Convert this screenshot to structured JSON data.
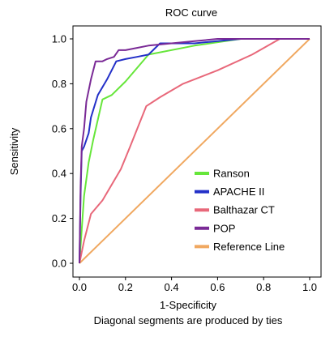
{
  "chart_data": {
    "type": "line",
    "title": "ROC curve",
    "xlabel": "1-Specificity",
    "ylabel": "Sensitivity",
    "note": "Diagonal segments are produced by ties",
    "xlim": [
      0,
      1
    ],
    "ylim": [
      0,
      1
    ],
    "x_ticks": [
      "0.0",
      "0.2",
      "0.4",
      "0.6",
      "0.8",
      "1.0"
    ],
    "y_ticks": [
      "0.0",
      "0.2",
      "0.4",
      "0.6",
      "0.8",
      "1.0"
    ],
    "legend_position": "bottom-right",
    "grid": false,
    "series": [
      {
        "name": "Ranson",
        "color": "#66e63a",
        "x": [
          0,
          0.01,
          0.02,
          0.04,
          0.06,
          0.1,
          0.14,
          0.2,
          0.3,
          0.5,
          0.7
        ],
        "y": [
          0,
          0.15,
          0.3,
          0.45,
          0.55,
          0.73,
          0.75,
          0.81,
          0.93,
          0.97,
          1.0
        ]
      },
      {
        "name": "APACHE II",
        "color": "#2330c8",
        "x": [
          0,
          0.005,
          0.01,
          0.02,
          0.04,
          0.05,
          0.08,
          0.12,
          0.16,
          0.2,
          0.25,
          0.3,
          0.35,
          0.5,
          0.7
        ],
        "y": [
          0,
          0.3,
          0.5,
          0.52,
          0.58,
          0.65,
          0.75,
          0.82,
          0.9,
          0.91,
          0.92,
          0.93,
          0.98,
          0.98,
          1.0
        ]
      },
      {
        "name": "Balthazar CT",
        "color": "#e8687a",
        "x": [
          0,
          0.02,
          0.05,
          0.1,
          0.18,
          0.22,
          0.29,
          0.35,
          0.45,
          0.6,
          0.75,
          0.87,
          1.0
        ],
        "y": [
          0,
          0.1,
          0.22,
          0.28,
          0.42,
          0.52,
          0.7,
          0.74,
          0.8,
          0.86,
          0.93,
          1.0,
          1.0
        ]
      },
      {
        "name": "POP",
        "color": "#7a2a96",
        "x": [
          0,
          0.005,
          0.01,
          0.02,
          0.03,
          0.05,
          0.07,
          0.1,
          0.12,
          0.15,
          0.17,
          0.2,
          0.25,
          0.3,
          0.4,
          0.5,
          0.6,
          0.8,
          1.0
        ],
        "y": [
          0,
          0.34,
          0.52,
          0.6,
          0.72,
          0.82,
          0.9,
          0.9,
          0.91,
          0.92,
          0.95,
          0.95,
          0.96,
          0.97,
          0.98,
          0.99,
          1.0,
          1.0,
          1.0
        ]
      },
      {
        "name": "Reference Line",
        "color": "#f0a860",
        "x": [
          0,
          1
        ],
        "y": [
          0,
          1
        ]
      }
    ]
  }
}
